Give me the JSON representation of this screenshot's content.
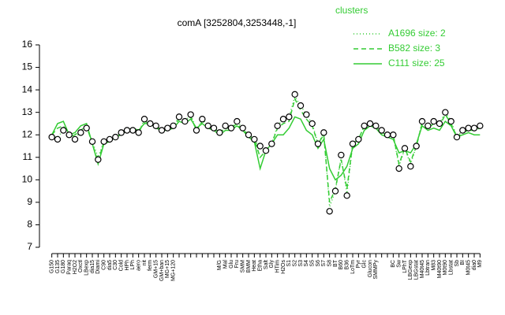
{
  "chart_data": {
    "type": "line",
    "title": "comA [3252804,3253448,-1]",
    "legend_title": "clusters",
    "legend_position": "top-right",
    "ylim": [
      7,
      16
    ],
    "yticks": [
      7,
      8,
      9,
      10,
      11,
      12,
      13,
      14,
      15,
      16
    ],
    "categories": [
      "G150",
      "G135",
      "G180",
      "Paraq",
      "H2O2",
      "Oxctl",
      "LBexp",
      "dia15",
      "Diami",
      "C90",
      "dia5",
      "C30",
      "Cold",
      "HPh",
      "LPh",
      "aero",
      "nit",
      "ferm",
      "GM+15",
      "GM+ban",
      "MG+15",
      "MG+120",
      null,
      null,
      null,
      null,
      null,
      null,
      null,
      "M/G",
      "Mal",
      "Glu",
      "Fru",
      "SMM",
      "BMM",
      "Heat",
      "Etha",
      "Salt",
      "Gly",
      "HTim",
      "H2Os",
      "S1",
      "S2",
      "S3",
      "S4",
      "S5",
      "S6",
      "S7",
      "S8",
      "BT",
      "B60",
      "B36",
      "LoTm",
      "Pyr",
      "Glc",
      "Glucon",
      "SMMPy",
      null,
      null,
      "BC",
      "Sw",
      "LPhT",
      "LBGexp",
      "LBGstat",
      "M40t45",
      "Lbtran",
      "M83",
      "M40t90",
      "M0t90",
      "Lbstat",
      "Sb",
      "BI",
      "M0t45",
      "dia0",
      "M9"
    ],
    "values": [
      11.9,
      11.8,
      12.2,
      12.0,
      11.8,
      12.1,
      12.3,
      11.7,
      10.9,
      11.7,
      11.8,
      11.9,
      12.1,
      12.2,
      12.2,
      12.1,
      12.7,
      12.5,
      12.4,
      12.2,
      12.3,
      12.4,
      12.8,
      12.6,
      12.9,
      12.2,
      12.7,
      12.4,
      12.3,
      12.1,
      12.4,
      12.3,
      12.6,
      12.3,
      12.0,
      11.8,
      11.5,
      11.3,
      11.6,
      12.4,
      12.7,
      12.8,
      13.8,
      13.3,
      12.9,
      12.5,
      11.6,
      12.1,
      8.6,
      9.5,
      11.1,
      9.3,
      11.6,
      11.8,
      12.4,
      12.5,
      12.4,
      12.2,
      12.0,
      12.0,
      10.5,
      11.4,
      10.6,
      11.5,
      12.6,
      12.4,
      12.6,
      12.5,
      13.0,
      12.6,
      11.9,
      12.2,
      12.3,
      12.3,
      12.4
    ],
    "point_color": "#000000",
    "series": [
      {
        "name": "A1696 size: 2",
        "color": "#33cc33",
        "dash": "dotted",
        "values": [
          11.9,
          11.9,
          12.2,
          12.0,
          11.9,
          12.1,
          12.3,
          11.7,
          11.0,
          11.7,
          11.8,
          11.9,
          12.1,
          12.2,
          12.2,
          12.1,
          12.7,
          12.5,
          12.4,
          12.2,
          12.3,
          12.4,
          12.8,
          12.6,
          12.9,
          12.2,
          12.7,
          12.4,
          12.3,
          12.1,
          12.4,
          12.3,
          12.6,
          12.3,
          12.0,
          11.8,
          11.4,
          11.3,
          11.6,
          12.4,
          12.7,
          12.8,
          13.7,
          13.3,
          12.9,
          12.5,
          11.6,
          12.1,
          8.8,
          9.5,
          11.0,
          9.4,
          11.6,
          11.8,
          12.4,
          12.5,
          12.4,
          12.2,
          12.0,
          12.0,
          10.6,
          11.4,
          10.7,
          11.5,
          12.6,
          12.4,
          12.6,
          12.5,
          13.0,
          12.6,
          11.9,
          12.2,
          12.3,
          12.3,
          12.4
        ]
      },
      {
        "name": "B582 size: 3",
        "color": "#33cc33",
        "dash": "dashed",
        "values": [
          12.0,
          12.3,
          12.4,
          11.9,
          12.0,
          12.2,
          12.4,
          11.6,
          10.8,
          11.7,
          11.8,
          11.9,
          12.1,
          12.2,
          12.3,
          12.1,
          12.6,
          12.5,
          12.4,
          12.2,
          12.3,
          12.4,
          12.7,
          12.6,
          12.8,
          12.2,
          12.6,
          12.4,
          12.3,
          12.1,
          12.3,
          12.3,
          12.5,
          12.2,
          12.0,
          11.8,
          11.0,
          11.3,
          11.6,
          12.3,
          12.5,
          12.6,
          13.6,
          13.1,
          12.7,
          12.4,
          11.6,
          12.0,
          9.0,
          9.6,
          10.9,
          9.6,
          11.6,
          11.8,
          12.4,
          12.5,
          12.4,
          12.1,
          12.0,
          12.0,
          10.7,
          11.4,
          10.8,
          11.5,
          12.5,
          12.3,
          12.5,
          12.4,
          12.9,
          12.5,
          11.9,
          12.1,
          12.2,
          12.2,
          12.3
        ]
      },
      {
        "name": "C111 size: 25",
        "color": "#33cc33",
        "dash": "solid",
        "values": [
          12.0,
          12.5,
          12.6,
          12.0,
          12.1,
          12.4,
          12.5,
          11.6,
          10.7,
          11.6,
          11.7,
          11.9,
          12.0,
          12.2,
          12.3,
          12.2,
          12.5,
          12.5,
          12.3,
          12.2,
          12.2,
          12.3,
          12.6,
          12.5,
          12.7,
          12.3,
          12.5,
          12.3,
          12.2,
          12.0,
          12.2,
          12.2,
          12.4,
          12.2,
          11.9,
          11.7,
          10.5,
          11.3,
          11.6,
          12.0,
          12.0,
          12.3,
          12.8,
          12.7,
          12.2,
          12.0,
          11.4,
          11.8,
          10.5,
          10.0,
          10.2,
          10.6,
          11.4,
          11.6,
          12.2,
          12.4,
          12.3,
          12.0,
          11.9,
          11.8,
          11.2,
          11.3,
          11.2,
          11.6,
          12.4,
          12.2,
          12.3,
          12.2,
          12.6,
          12.4,
          11.9,
          12.0,
          12.1,
          12.0,
          12.0
        ]
      }
    ]
  }
}
